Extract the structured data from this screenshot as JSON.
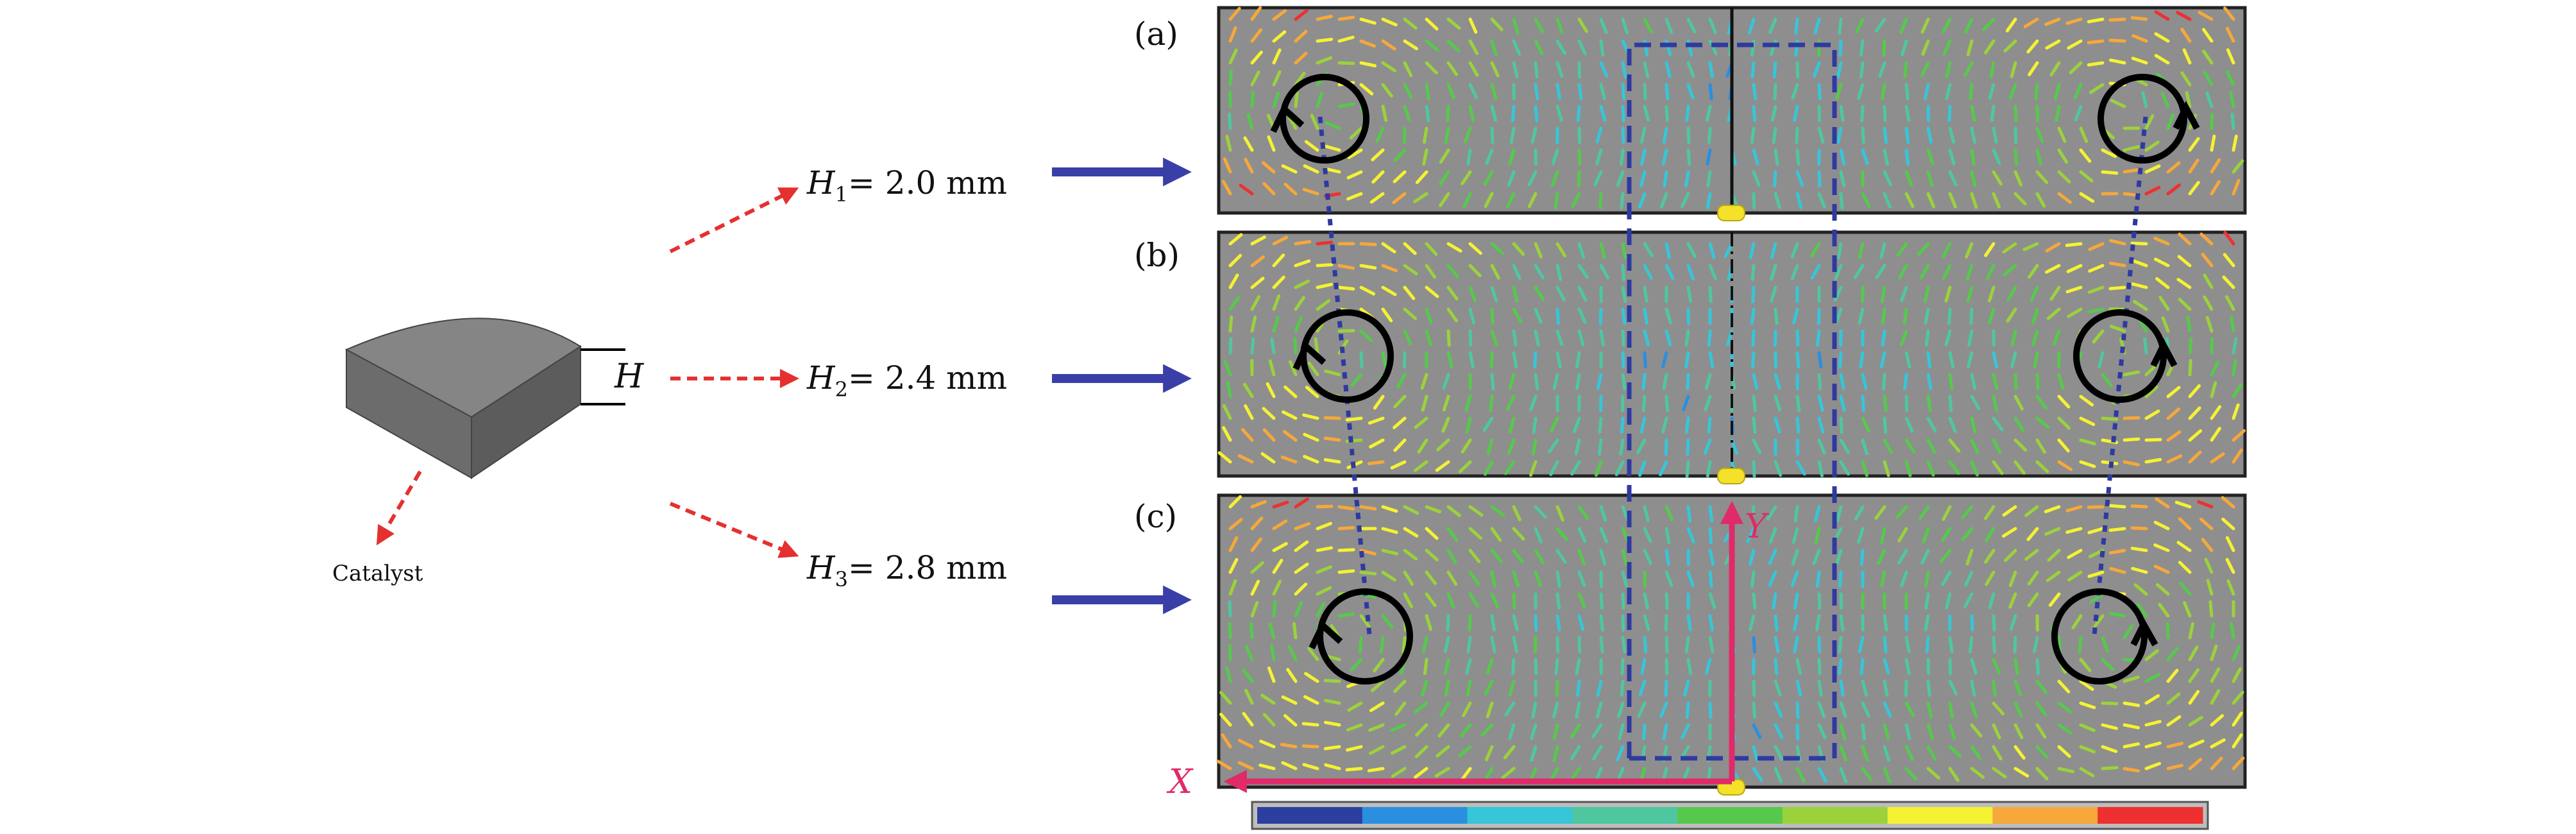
{
  "catalyst": {
    "label": "Catalyst",
    "height_symbol": "H"
  },
  "heights": [
    {
      "symbol": "H",
      "sub": "1",
      "value": "= 2.0 mm"
    },
    {
      "symbol": "H",
      "sub": "2",
      "value": "= 2.4 mm"
    },
    {
      "symbol": "H",
      "sub": "3",
      "value": "= 2.8 mm"
    }
  ],
  "panels": [
    {
      "label": "(a)"
    },
    {
      "label": "(b)"
    },
    {
      "label": "(c)"
    }
  ],
  "axes": {
    "x_label": "X",
    "y_label": "Y"
  },
  "colorbar": {
    "colors": [
      "#2b3f9e",
      "#2b8fe0",
      "#36c6d8",
      "#4fc7a0",
      "#56c94c",
      "#9bd23c",
      "#f4f233",
      "#f6a83a",
      "#ee3030"
    ]
  },
  "colors": {
    "panel_bg": "#8e8e8e",
    "guide_line": "#2f3aa0",
    "red_arrow": "#e53030",
    "blue_arrow": "#3a3fa8",
    "axis": "#e02a6a",
    "marker": "#f3e12a"
  }
}
